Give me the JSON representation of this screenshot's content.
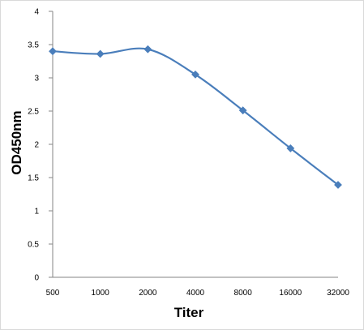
{
  "chart_data": {
    "type": "line",
    "title": "",
    "xlabel": "Titer",
    "ylabel": "OD450nm",
    "categories": [
      "500",
      "1000",
      "2000",
      "4000",
      "8000",
      "16000",
      "32000"
    ],
    "series": [
      {
        "values": [
          3.4,
          3.36,
          3.43,
          3.05,
          2.51,
          1.94,
          1.39
        ],
        "color": "#4a7ebb",
        "marker": "diamond",
        "smooth": true
      }
    ],
    "ylim": [
      0,
      4
    ],
    "yticks": [
      "0",
      "0.5",
      "1",
      "1.5",
      "2",
      "2.5",
      "3",
      "3.5",
      "4"
    ],
    "grid": false,
    "legend": "none"
  }
}
